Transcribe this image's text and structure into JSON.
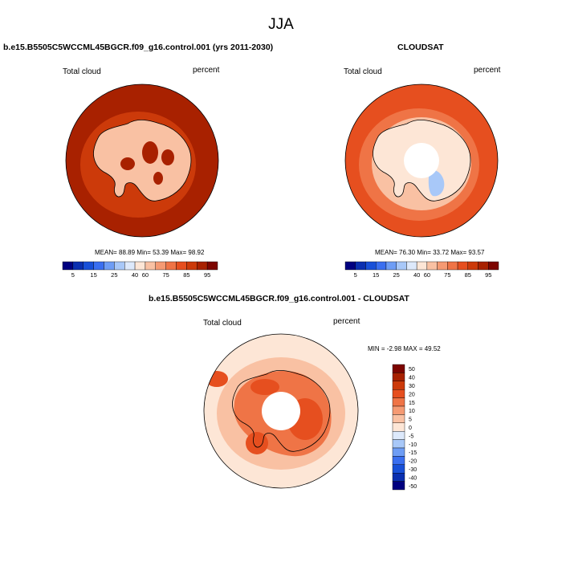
{
  "title": "JJA",
  "panels": [
    {
      "id": "model",
      "case_title": "b.e15.B5505C5WCCML45BGCR.f09_g16.control.001 (yrs 2011-2030)",
      "variable": "Total cloud",
      "units": "percent",
      "stats": {
        "mean_label": "MEAN=",
        "mean": "88.89",
        "min_label": "Min=",
        "min": "53.39",
        "max_label": "Max=",
        "max": "98.92"
      }
    },
    {
      "id": "obs",
      "case_title": "CLOUDSAT",
      "variable": "Total cloud",
      "units": "percent",
      "stats": {
        "mean_label": "MEAN=",
        "mean": "76.30",
        "min_label": "Min=",
        "min": "33.72",
        "max_label": "Max=",
        "max": "93.57"
      }
    },
    {
      "id": "diff",
      "case_title": "b.e15.B5505C5WCCML45BGCR.f09_g16.control.001 - CLOUDSAT",
      "variable": "Total cloud",
      "units": "percent",
      "stats": {
        "min_label": "MIN =",
        "min": "-2.98",
        "max_label": "MAX =",
        "max": "49.52"
      }
    }
  ],
  "colorbar_abs": {
    "colors": [
      "#000080",
      "#0a2fb0",
      "#1850d8",
      "#3a6ff0",
      "#6e9df5",
      "#a8c8f8",
      "#dde9fb",
      "#fde6d6",
      "#f9c1a3",
      "#f59a73",
      "#ef7446",
      "#e64f1f",
      "#cc3a0a",
      "#a82100",
      "#7d0500"
    ],
    "labels": [
      "5",
      "15",
      "25",
      "40",
      "60",
      "75",
      "85",
      "95"
    ]
  },
  "colorbar_diff": {
    "colors": [
      "#7d0500",
      "#a82100",
      "#cc3a0a",
      "#e64f1f",
      "#ef7446",
      "#f59a73",
      "#f9c1a3",
      "#fde6d6",
      "#dde9fb",
      "#a8c8f8",
      "#6e9df5",
      "#3a6ff0",
      "#1850d8",
      "#0a2fb0",
      "#000080"
    ],
    "labels": [
      "50",
      "40",
      "30",
      "20",
      "15",
      "10",
      "5",
      "0",
      "-5",
      "-10",
      "-15",
      "-20",
      "-30",
      "-40",
      "-50"
    ]
  },
  "fill_colors": {
    "model_base": "#a82100",
    "model_mid": "#cc3a0a",
    "model_ice": "#f9c1a3",
    "model_ice_dark": "#a82100",
    "obs_base": "#e64f1f",
    "obs_mid": "#ef7446",
    "obs_light": "#f9c1a3",
    "obs_pale": "#fde6d6",
    "obs_blue": "#a8c8f8",
    "diff_base": "#fde6d6",
    "diff_mid": "#f9c1a3",
    "diff_warm": "#ef7446",
    "diff_hot": "#e64f1f"
  }
}
